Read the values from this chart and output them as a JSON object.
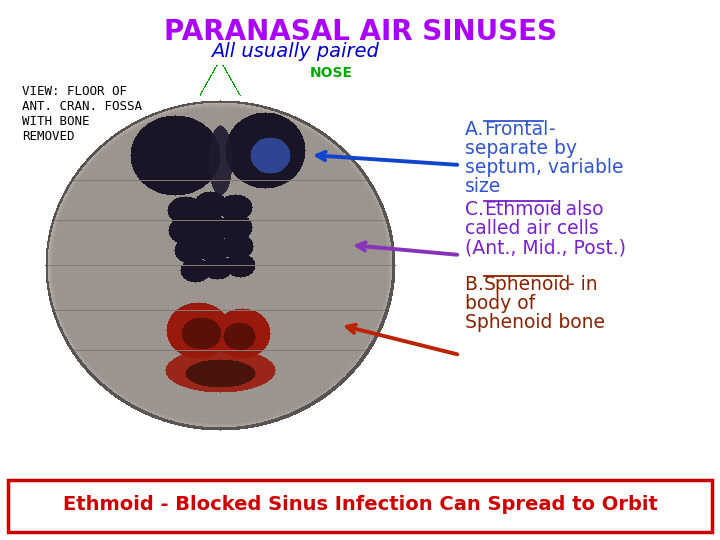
{
  "title": "PARANASAL AIR SINUSES",
  "subtitle": "All usually paired",
  "title_color": "#aa00ff",
  "subtitle_color": "#0000cc",
  "view_label": "VIEW: FLOOR OF\nANT. CRAN. FOSSA\nWITH BONE\nREMOVED",
  "nose_label": "NOSE",
  "bottom_text": "Ethmoid - Blocked Sinus Infection Can Spread to Orbit",
  "bottom_text_color": "#cc0000",
  "bottom_box_color": "#cc0000",
  "bg_color": "#ffffff",
  "arrow_frontal_color": "#1144cc",
  "arrow_ethmoid_color": "#8833bb",
  "arrow_sphenoid_color": "#bb2200",
  "text_a_color": "#3355cc",
  "text_c_color": "#7722cc",
  "text_b_color": "#882200",
  "nose_color": "#00aa00",
  "view_label_color": "#000000",
  "skull_bg": "#c8c0b0",
  "skull_edge": "#555555",
  "frontal_fill": "#1a1a2e",
  "ethmoid_fill": "#1a1a2e",
  "sphenoid_fill": "#8b2000",
  "highlight_blue": "#4488ff"
}
